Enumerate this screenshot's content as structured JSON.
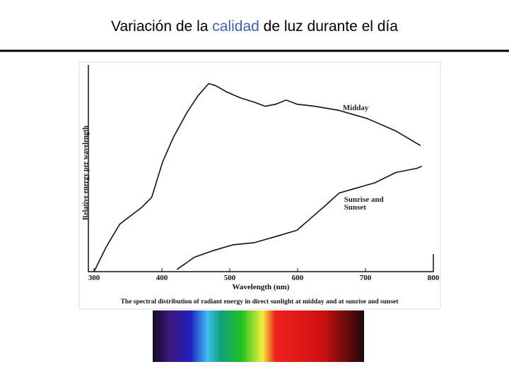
{
  "slide": {
    "title_parts": [
      "Variación de la ",
      "calidad",
      " de luz durante el día"
    ]
  },
  "chart_data": {
    "type": "line",
    "xlabel": "Wavelength (nm)",
    "ylabel": "Relative energy per wavelength",
    "caption": "The spectral distribution of radiant energy in direct sunlight at midday and at sunrise and sunset",
    "xlim": [
      300,
      800
    ],
    "xticks": [
      300,
      400,
      500,
      600,
      700,
      800
    ],
    "ylim": [
      0,
      100
    ],
    "series": [
      {
        "name": "Midday",
        "color": "#111111",
        "x": [
          300,
          318,
          338,
          370,
          385,
          401,
          417,
          437,
          453,
          469,
          479,
          495,
          516,
          536,
          552,
          568,
          583,
          599,
          625,
          661,
          703,
          745,
          781
        ],
        "values": [
          0,
          12,
          23,
          31,
          36,
          53,
          65,
          77,
          85,
          91,
          90,
          87,
          84,
          82,
          80,
          81,
          83,
          81,
          80,
          78,
          74,
          68,
          61
        ]
      },
      {
        "name": "Sunrise and Sunset",
        "color": "#111111",
        "x": [
          422,
          448,
          474,
          505,
          536,
          568,
          599,
          620,
          641,
          661,
          682,
          714,
          745,
          776,
          783
        ],
        "values": [
          1,
          7,
          10,
          13,
          14,
          17,
          20,
          26,
          32,
          38,
          40,
          43,
          48,
          50,
          51
        ]
      }
    ]
  }
}
